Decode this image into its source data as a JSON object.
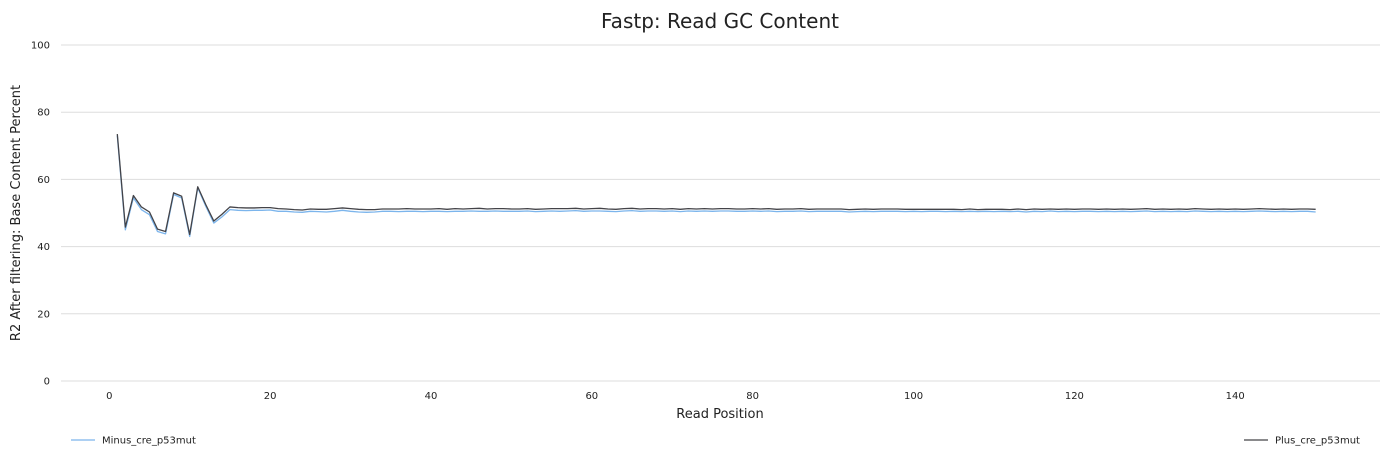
{
  "chart_data": {
    "type": "line",
    "title": "Fastp: Read GC Content",
    "xlabel": "Read Position",
    "ylabel": "R2 After filtering: Base Content Percent",
    "xlim": [
      -6,
      158
    ],
    "ylim": [
      0,
      100
    ],
    "x_ticks": [
      "0",
      "20",
      "40",
      "60",
      "80",
      "100",
      "120",
      "140"
    ],
    "x_tick_values": [
      0,
      20,
      40,
      60,
      80,
      100,
      120,
      140
    ],
    "y_ticks": [
      "0",
      "20",
      "40",
      "60",
      "80",
      "100"
    ],
    "y_tick_values": [
      0,
      20,
      40,
      60,
      80,
      100
    ],
    "grid": true,
    "legend_placement": "bottom",
    "series": [
      {
        "name": "Minus_cre_p53mut",
        "color": "#7cb5ec",
        "x": [
          1,
          2,
          3,
          4,
          5,
          6,
          7,
          8,
          9,
          10,
          11,
          12,
          13,
          14,
          15,
          16,
          17,
          18,
          19,
          20,
          21,
          22,
          23,
          24,
          25,
          26,
          27,
          28,
          29,
          30,
          31,
          32,
          33,
          34,
          35,
          36,
          37,
          38,
          39,
          40,
          41,
          42,
          43,
          44,
          45,
          46,
          47,
          48,
          49,
          50,
          51,
          52,
          53,
          54,
          55,
          56,
          57,
          58,
          59,
          60,
          61,
          62,
          63,
          64,
          65,
          66,
          67,
          68,
          69,
          70,
          71,
          72,
          73,
          74,
          75,
          76,
          77,
          78,
          79,
          80,
          81,
          82,
          83,
          84,
          85,
          86,
          87,
          88,
          89,
          90,
          91,
          92,
          93,
          94,
          95,
          96,
          97,
          98,
          99,
          100,
          101,
          102,
          103,
          104,
          105,
          106,
          107,
          108,
          109,
          110,
          111,
          112,
          113,
          114,
          115,
          116,
          117,
          118,
          119,
          120,
          121,
          122,
          123,
          124,
          125,
          126,
          127,
          128,
          129,
          130,
          131,
          132,
          133,
          134,
          135,
          136,
          137,
          138,
          139,
          140,
          141,
          142,
          143,
          144,
          145,
          146,
          147,
          148,
          149,
          150
        ],
        "y": [
          73.0,
          45.0,
          54.5,
          51.0,
          49.5,
          44.5,
          43.8,
          55.5,
          54.5,
          43.0,
          57.5,
          52.0,
          47.0,
          48.8,
          51.0,
          50.8,
          50.7,
          50.8,
          50.8,
          50.9,
          50.5,
          50.5,
          50.3,
          50.2,
          50.5,
          50.4,
          50.3,
          50.5,
          50.8,
          50.5,
          50.3,
          50.2,
          50.3,
          50.5,
          50.5,
          50.4,
          50.5,
          50.5,
          50.4,
          50.5,
          50.5,
          50.4,
          50.5,
          50.5,
          50.6,
          50.5,
          50.5,
          50.6,
          50.5,
          50.5,
          50.5,
          50.6,
          50.4,
          50.5,
          50.6,
          50.5,
          50.6,
          50.7,
          50.5,
          50.6,
          50.6,
          50.5,
          50.4,
          50.6,
          50.7,
          50.5,
          50.6,
          50.6,
          50.5,
          50.6,
          50.4,
          50.6,
          50.5,
          50.6,
          50.5,
          50.6,
          50.6,
          50.5,
          50.5,
          50.6,
          50.5,
          50.6,
          50.4,
          50.5,
          50.5,
          50.6,
          50.4,
          50.5,
          50.5,
          50.5,
          50.5,
          50.3,
          50.4,
          50.5,
          50.4,
          50.5,
          50.5,
          50.5,
          50.4,
          50.5,
          50.4,
          50.5,
          50.5,
          50.4,
          50.5,
          50.4,
          50.5,
          50.4,
          50.5,
          50.4,
          50.5,
          50.4,
          50.5,
          50.3,
          50.5,
          50.4,
          50.6,
          50.4,
          50.5,
          50.4,
          50.5,
          50.5,
          50.4,
          50.5,
          50.4,
          50.5,
          50.4,
          50.5,
          50.6,
          50.4,
          50.5,
          50.4,
          50.5,
          50.4,
          50.6,
          50.5,
          50.4,
          50.5,
          50.4,
          50.5,
          50.4,
          50.5,
          50.6,
          50.5,
          50.4,
          50.5,
          50.4,
          50.5,
          50.5,
          50.3
        ]
      },
      {
        "name": "Plus_cre_p53mut",
        "color": "#434348",
        "x": [
          1,
          2,
          3,
          4,
          5,
          6,
          7,
          8,
          9,
          10,
          11,
          12,
          13,
          14,
          15,
          16,
          17,
          18,
          19,
          20,
          21,
          22,
          23,
          24,
          25,
          26,
          27,
          28,
          29,
          30,
          31,
          32,
          33,
          34,
          35,
          36,
          37,
          38,
          39,
          40,
          41,
          42,
          43,
          44,
          45,
          46,
          47,
          48,
          49,
          50,
          51,
          52,
          53,
          54,
          55,
          56,
          57,
          58,
          59,
          60,
          61,
          62,
          63,
          64,
          65,
          66,
          67,
          68,
          69,
          70,
          71,
          72,
          73,
          74,
          75,
          76,
          77,
          78,
          79,
          80,
          81,
          82,
          83,
          84,
          85,
          86,
          87,
          88,
          89,
          90,
          91,
          92,
          93,
          94,
          95,
          96,
          97,
          98,
          99,
          100,
          101,
          102,
          103,
          104,
          105,
          106,
          107,
          108,
          109,
          110,
          111,
          112,
          113,
          114,
          115,
          116,
          117,
          118,
          119,
          120,
          121,
          122,
          123,
          124,
          125,
          126,
          127,
          128,
          129,
          130,
          131,
          132,
          133,
          134,
          135,
          136,
          137,
          138,
          139,
          140,
          141,
          142,
          143,
          144,
          145,
          146,
          147,
          148,
          149,
          150
        ],
        "y": [
          73.5,
          45.8,
          55.2,
          51.8,
          50.3,
          45.2,
          44.5,
          56.0,
          55.0,
          43.6,
          57.8,
          52.5,
          47.6,
          49.6,
          51.8,
          51.6,
          51.5,
          51.5,
          51.6,
          51.6,
          51.3,
          51.2,
          51.0,
          50.9,
          51.2,
          51.1,
          51.1,
          51.3,
          51.5,
          51.3,
          51.1,
          51.0,
          51.0,
          51.2,
          51.2,
          51.2,
          51.3,
          51.2,
          51.2,
          51.2,
          51.3,
          51.1,
          51.3,
          51.2,
          51.3,
          51.4,
          51.2,
          51.3,
          51.3,
          51.2,
          51.2,
          51.3,
          51.1,
          51.2,
          51.3,
          51.3,
          51.3,
          51.4,
          51.2,
          51.3,
          51.4,
          51.2,
          51.1,
          51.3,
          51.4,
          51.2,
          51.3,
          51.3,
          51.2,
          51.3,
          51.1,
          51.3,
          51.2,
          51.3,
          51.2,
          51.3,
          51.3,
          51.2,
          51.2,
          51.3,
          51.2,
          51.3,
          51.1,
          51.2,
          51.2,
          51.3,
          51.1,
          51.2,
          51.2,
          51.2,
          51.2,
          51.0,
          51.1,
          51.2,
          51.1,
          51.2,
          51.2,
          51.2,
          51.1,
          51.1,
          51.1,
          51.1,
          51.1,
          51.1,
          51.1,
          51.0,
          51.2,
          51.0,
          51.1,
          51.1,
          51.1,
          51.0,
          51.2,
          51.0,
          51.2,
          51.1,
          51.2,
          51.1,
          51.2,
          51.1,
          51.2,
          51.2,
          51.1,
          51.2,
          51.1,
          51.2,
          51.1,
          51.2,
          51.3,
          51.1,
          51.2,
          51.1,
          51.2,
          51.1,
          51.3,
          51.2,
          51.1,
          51.2,
          51.1,
          51.2,
          51.1,
          51.2,
          51.3,
          51.2,
          51.1,
          51.2,
          51.1,
          51.2,
          51.2,
          51.1
        ]
      }
    ]
  }
}
